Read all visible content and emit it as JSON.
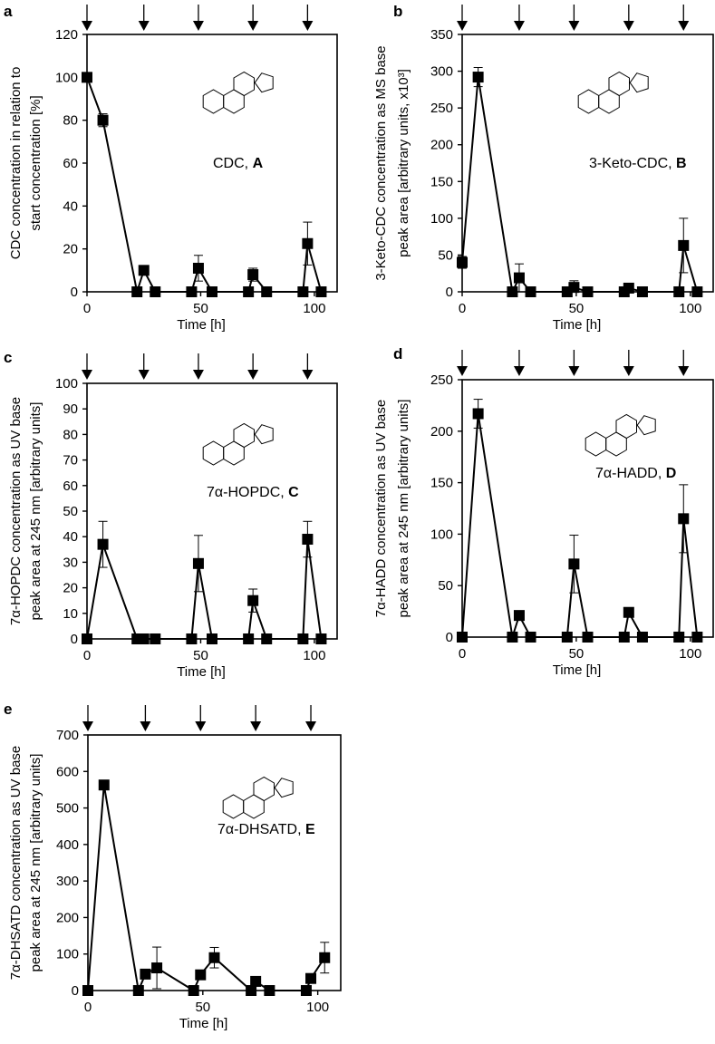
{
  "chart_data": [
    {
      "type": "line",
      "panel_letter": "a",
      "title": "",
      "xlabel": "Time [h]",
      "ylabel": [
        "CDC concentration in relation to",
        "start concentration [%]"
      ],
      "compound_name": "CDC, ",
      "compound_letter": "A",
      "xlim": [
        0,
        110
      ],
      "ylim": [
        0,
        120
      ],
      "xticks": [
        0,
        50,
        100
      ],
      "yticks": [
        0,
        20,
        40,
        60,
        80,
        100,
        120
      ],
      "feeding_arrows_at": [
        0,
        25,
        49,
        73,
        97
      ],
      "x": [
        0,
        7,
        22,
        25,
        30,
        46,
        49,
        55,
        71,
        73,
        79,
        95,
        97,
        103
      ],
      "y": [
        100,
        80,
        0,
        10,
        0,
        0,
        11,
        0,
        0,
        8,
        0,
        0,
        22.5,
        0
      ],
      "error": [
        0,
        3,
        0,
        2,
        0,
        0,
        6,
        0,
        0,
        3,
        0,
        0,
        10,
        0
      ]
    },
    {
      "type": "line",
      "panel_letter": "b",
      "xlabel": "Time [h]",
      "ylabel": [
        "3-Keto-CDC concentration as MS base",
        "peak area [arbitrary units, x10³]"
      ],
      "compound_name": "3-Keto-CDC, ",
      "compound_letter": "B",
      "xlim": [
        0,
        110
      ],
      "ylim": [
        0,
        350
      ],
      "xticks": [
        0,
        50,
        100
      ],
      "yticks": [
        0,
        50,
        100,
        150,
        200,
        250,
        300,
        350
      ],
      "feeding_arrows_at": [
        0,
        25,
        49,
        73,
        97
      ],
      "x": [
        0,
        7,
        22,
        25,
        30,
        46,
        49,
        55,
        71,
        73,
        79,
        95,
        97,
        103
      ],
      "y": [
        40,
        292,
        0,
        19,
        0,
        0,
        6,
        0,
        0,
        5,
        0,
        0,
        63,
        0
      ],
      "error": [
        8,
        13,
        0,
        19,
        0,
        0,
        9,
        0,
        0,
        3,
        0,
        0,
        37,
        0
      ]
    },
    {
      "type": "line",
      "panel_letter": "c",
      "xlabel": "Time [h]",
      "ylabel": [
        "7α-HOPDC concentration as UV base",
        "peak area at 245 nm [arbitrary units]"
      ],
      "compound_name": "7α-HOPDC, ",
      "compound_letter": "C",
      "xlim": [
        0,
        110
      ],
      "ylim": [
        0,
        100
      ],
      "xticks": [
        0,
        50,
        100
      ],
      "yticks": [
        0,
        10,
        20,
        30,
        40,
        50,
        60,
        70,
        80,
        90,
        100
      ],
      "feeding_arrows_at": [
        0,
        25,
        49,
        73,
        97
      ],
      "x": [
        0,
        7,
        22,
        25,
        30,
        46,
        49,
        55,
        71,
        73,
        79,
        95,
        97,
        103
      ],
      "y": [
        0,
        37,
        0,
        0,
        0,
        0,
        29.5,
        0,
        0,
        15,
        0,
        0,
        39,
        0
      ],
      "error": [
        0,
        9,
        0,
        0,
        0,
        0,
        11,
        0,
        0,
        4.5,
        0,
        0,
        7,
        0
      ]
    },
    {
      "type": "line",
      "panel_letter": "d",
      "xlabel": "Time [h]",
      "ylabel": [
        "7α-HADD concentration as UV base",
        "peak area at 245 nm [arbitrary units]"
      ],
      "compound_name": "7α-HADD, ",
      "compound_letter": "D",
      "xlim": [
        0,
        110
      ],
      "ylim": [
        0,
        250
      ],
      "xticks": [
        0,
        50,
        100
      ],
      "yticks": [
        0,
        50,
        100,
        150,
        200,
        250
      ],
      "feeding_arrows_at": [
        0,
        25,
        49,
        73,
        97
      ],
      "x": [
        0,
        7,
        22,
        25,
        30,
        46,
        49,
        55,
        71,
        73,
        79,
        95,
        97,
        103
      ],
      "y": [
        0,
        217,
        0,
        21,
        0,
        0,
        71,
        0,
        0,
        24,
        0,
        0,
        115,
        0
      ],
      "error": [
        0,
        14,
        0,
        0,
        0,
        0,
        28,
        0,
        0,
        0,
        0,
        0,
        33,
        0
      ]
    },
    {
      "type": "line",
      "panel_letter": "e",
      "xlabel": "Time [h]",
      "ylabel": [
        "7α-DHSATD concentration as UV base",
        "peak area at 245 nm [arbitrary units]"
      ],
      "compound_name": "7α-DHSATD, ",
      "compound_letter": "E",
      "xlim": [
        0,
        110
      ],
      "ylim": [
        0,
        700
      ],
      "xticks": [
        0,
        50,
        100
      ],
      "yticks": [
        0,
        100,
        200,
        300,
        400,
        500,
        600,
        700
      ],
      "feeding_arrows_at": [
        0,
        25,
        49,
        73,
        97
      ],
      "x": [
        0,
        7,
        22,
        25,
        30,
        46,
        49,
        55,
        71,
        73,
        79,
        95,
        97,
        103
      ],
      "y": [
        0,
        563,
        0,
        45,
        62,
        0,
        43,
        90,
        0,
        25,
        0,
        0,
        33,
        90
      ],
      "error": [
        0,
        0,
        0,
        0,
        57,
        0,
        0,
        28,
        0,
        0,
        0,
        0,
        0,
        42
      ]
    }
  ]
}
